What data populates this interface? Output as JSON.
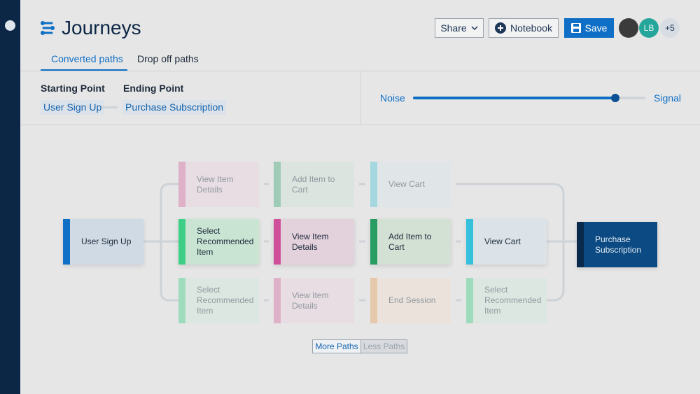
{
  "header": {
    "title": "Journeys",
    "buttons": [
      "Share",
      "Notebook",
      "Save"
    ],
    "avatars": [
      "LB",
      "+5"
    ]
  },
  "tabs": [
    "Converted paths",
    "Drop off paths"
  ],
  "filters": {
    "starting_point": {
      "label": "Starting Point",
      "value": "User Sign Up"
    },
    "ending_point": {
      "label": "Ending Point",
      "value": "Purchase Subscription"
    }
  },
  "slider": {
    "min_label": "Noise",
    "max_label": "Signal"
  },
  "journey": {
    "start": "User Sign Up",
    "end": "Purchase Subscription",
    "paths": [
      [
        "View Item Details",
        "Add Item to Cart",
        "View Cart"
      ],
      [
        "Select Recommended Item",
        "View Item Details",
        "Add Item to Cart",
        "View Cart"
      ],
      [
        "Select Recommended Item",
        "View Item Details",
        "End Session",
        "Select Recommended Item"
      ]
    ]
  },
  "path_buttons": [
    "More Paths",
    "Less Paths"
  ]
}
